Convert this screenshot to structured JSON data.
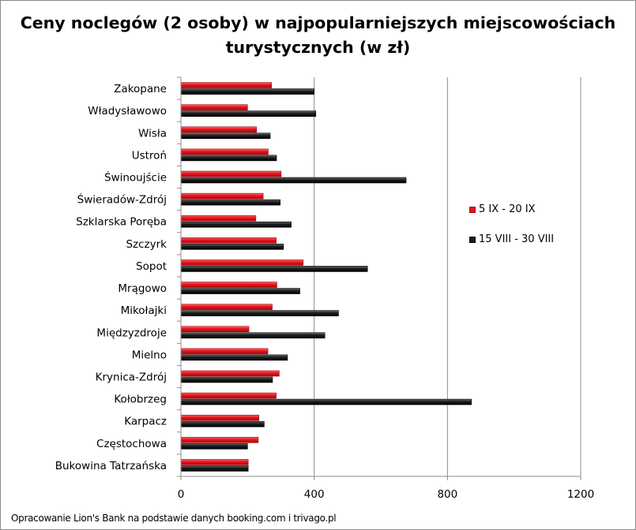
{
  "chart_data": {
    "type": "bar",
    "orientation": "horizontal",
    "title_lines": [
      "Ceny noclegów (2 osoby) w najpopularniejszych miejscowościach",
      "turystycznych (w zł)"
    ],
    "categories": [
      "Zakopane",
      "Władysławowo",
      "Wisła",
      "Ustroń",
      "Świnoujście",
      "Świeradów-Zdrój",
      "Szklarska Poręba",
      "Szczyrk",
      "Sopot",
      "Mrągowo",
      "Mikołajki",
      "Międzyzdroje",
      "Mielno",
      "Krynica-Zdrój",
      "Kołobrzeg",
      "Karpacz",
      "Częstochowa",
      "Bukowina Tatrzańska"
    ],
    "series": [
      {
        "name": "5 IX - 20 IX",
        "color": "#e8101a",
        "values": [
          272,
          200,
          227,
          262,
          301,
          247,
          225,
          286,
          367,
          288,
          274,
          204,
          261,
          295,
          286,
          234,
          232,
          202
        ]
      },
      {
        "name": "15 VIII - 30 VIII",
        "color": "#1c1c1c",
        "values": [
          400,
          405,
          268,
          287,
          676,
          298,
          331,
          308,
          560,
          357,
          473,
          432,
          320,
          275,
          872,
          250,
          200,
          202
        ]
      }
    ],
    "xlim": [
      0,
      1200
    ],
    "x_ticks": [
      0,
      400,
      800,
      1200
    ],
    "grid": true,
    "legend_position": "right"
  },
  "source_note": "Opracowanie Lion's Bank na podstawie danych booking.com i trivago.pl"
}
